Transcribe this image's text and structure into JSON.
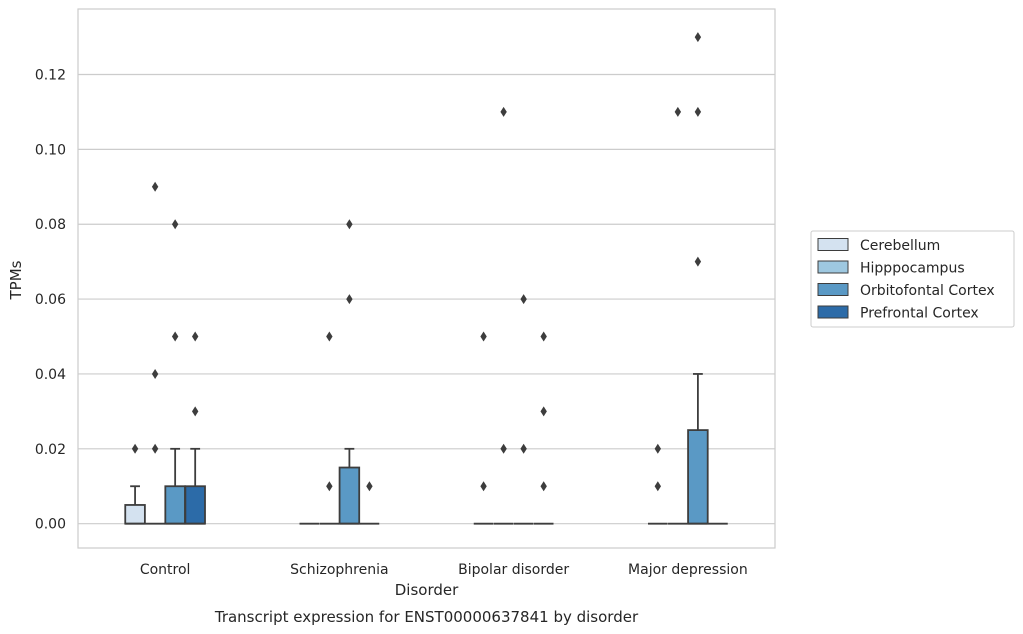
{
  "chart_data": {
    "type": "box",
    "title": "",
    "caption": "Transcript expression for ENST00000637841 by disorder",
    "xlabel": "Disorder",
    "ylabel": "TPMs",
    "ylim": [
      -0.0065,
      0.1375
    ],
    "yticks": [
      "0.00",
      "0.02",
      "0.04",
      "0.06",
      "0.08",
      "0.10",
      "0.12"
    ],
    "grid": "horizontal",
    "legend_placement": "right",
    "categories": [
      "Control",
      "Schizophrenia",
      "Bipolar disorder",
      "Major depression"
    ],
    "series": [
      {
        "name": "Cerebellum",
        "color": "#d4e2f0",
        "boxes": [
          {
            "q1": 0,
            "median": 0,
            "q3": 0.005,
            "whisker_low": 0,
            "whisker_high": 0.01,
            "outliers": [
              0.02
            ]
          },
          {
            "q1": 0,
            "median": 0,
            "q3": 0,
            "whisker_low": 0,
            "whisker_high": 0,
            "outliers": []
          },
          {
            "q1": 0,
            "median": 0,
            "q3": 0,
            "whisker_low": 0,
            "whisker_high": 0,
            "outliers": [
              0.05,
              0.01
            ]
          },
          {
            "q1": 0,
            "median": 0,
            "q3": 0,
            "whisker_low": 0,
            "whisker_high": 0,
            "outliers": [
              0.02,
              0.01
            ]
          }
        ]
      },
      {
        "name": "Hipppocampus",
        "color": "#9ec8e0",
        "boxes": [
          {
            "q1": 0,
            "median": 0,
            "q3": 0,
            "whisker_low": 0,
            "whisker_high": 0,
            "outliers": [
              0.09,
              0.04,
              0.02
            ]
          },
          {
            "q1": 0,
            "median": 0,
            "q3": 0,
            "whisker_low": 0,
            "whisker_high": 0,
            "outliers": [
              0.05,
              0.01
            ]
          },
          {
            "q1": 0,
            "median": 0,
            "q3": 0,
            "whisker_low": 0,
            "whisker_high": 0,
            "outliers": [
              0.11,
              0.02
            ]
          },
          {
            "q1": 0,
            "median": 0,
            "q3": 0,
            "whisker_low": 0,
            "whisker_high": 0,
            "outliers": [
              0.11
            ]
          }
        ]
      },
      {
        "name": "Orbitofontal Cortex",
        "color": "#5a99c5",
        "boxes": [
          {
            "q1": 0,
            "median": 0,
            "q3": 0.01,
            "whisker_low": 0,
            "whisker_high": 0.02,
            "outliers": [
              0.08,
              0.05
            ]
          },
          {
            "q1": 0,
            "median": 0,
            "q3": 0.015,
            "whisker_low": 0,
            "whisker_high": 0.02,
            "outliers": [
              0.08,
              0.06
            ]
          },
          {
            "q1": 0,
            "median": 0,
            "q3": 0,
            "whisker_low": 0,
            "whisker_high": 0,
            "outliers": [
              0.06,
              0.02
            ]
          },
          {
            "q1": 0,
            "median": 0,
            "q3": 0.025,
            "whisker_low": 0,
            "whisker_high": 0.04,
            "outliers": [
              0.13,
              0.11,
              0.07
            ]
          }
        ]
      },
      {
        "name": "Prefrontal Cortex",
        "color": "#2c6ba8",
        "boxes": [
          {
            "q1": 0,
            "median": 0,
            "q3": 0.01,
            "whisker_low": 0,
            "whisker_high": 0.02,
            "outliers": [
              0.05,
              0.03
            ]
          },
          {
            "q1": 0,
            "median": 0,
            "q3": 0,
            "whisker_low": 0,
            "whisker_high": 0,
            "outliers": [
              0.01
            ]
          },
          {
            "q1": 0,
            "median": 0,
            "q3": 0,
            "whisker_low": 0,
            "whisker_high": 0,
            "outliers": [
              0.05,
              0.03,
              0.01
            ]
          },
          {
            "q1": 0,
            "median": 0,
            "q3": 0,
            "whisker_low": 0,
            "whisker_high": 0,
            "outliers": []
          }
        ]
      }
    ]
  }
}
